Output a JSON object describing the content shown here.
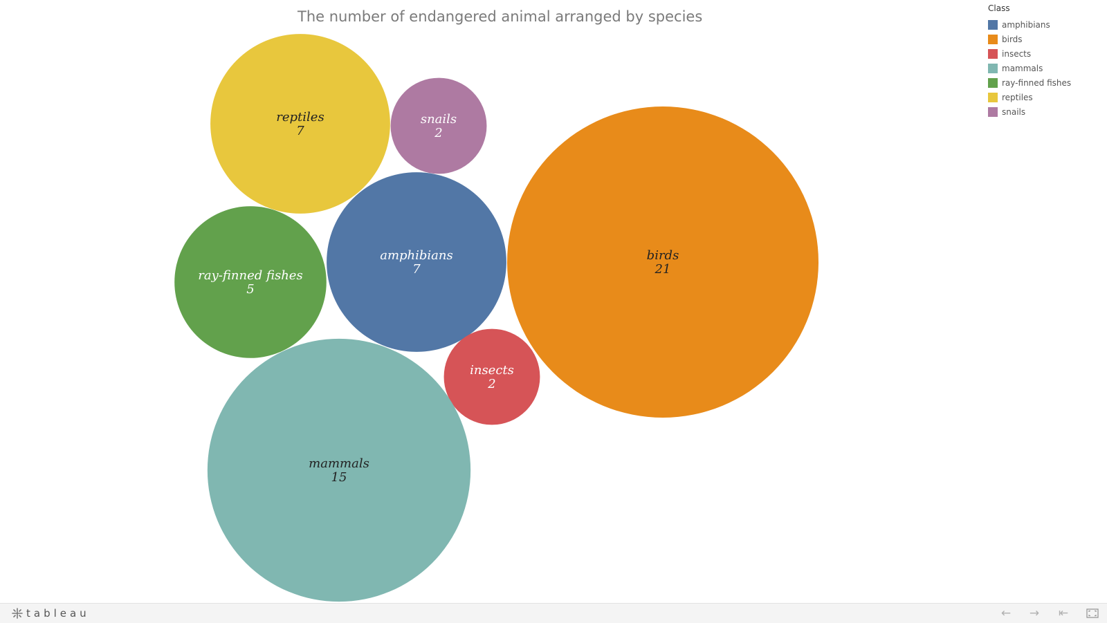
{
  "chart_data": {
    "type": "bubble",
    "title": "The number of endangered animal arranged by species",
    "legend_title": "Class",
    "legend_position": "top-right",
    "categories": [
      "amphibians",
      "birds",
      "insects",
      "mammals",
      "ray-finned fishes",
      "reptiles",
      "snails"
    ],
    "values": [
      7,
      21,
      2,
      15,
      5,
      7,
      2
    ],
    "colors": [
      "#5277a6",
      "#e88b1a",
      "#d65457",
      "#80b7b1",
      "#62a14c",
      "#e8c73d",
      "#ae7aa2"
    ],
    "label_colors": [
      "#ffffff",
      "#222222",
      "#ffffff",
      "#222222",
      "#ffffff",
      "#222222",
      "#ffffff"
    ]
  },
  "footer": {
    "brand": "tableau",
    "brand_icon": "tableau-logo-icon",
    "back_icon": "arrow-left-icon",
    "forward_icon": "arrow-right-icon",
    "reset_icon": "first-page-icon",
    "fullscreen_icon": "fullscreen-icon"
  }
}
